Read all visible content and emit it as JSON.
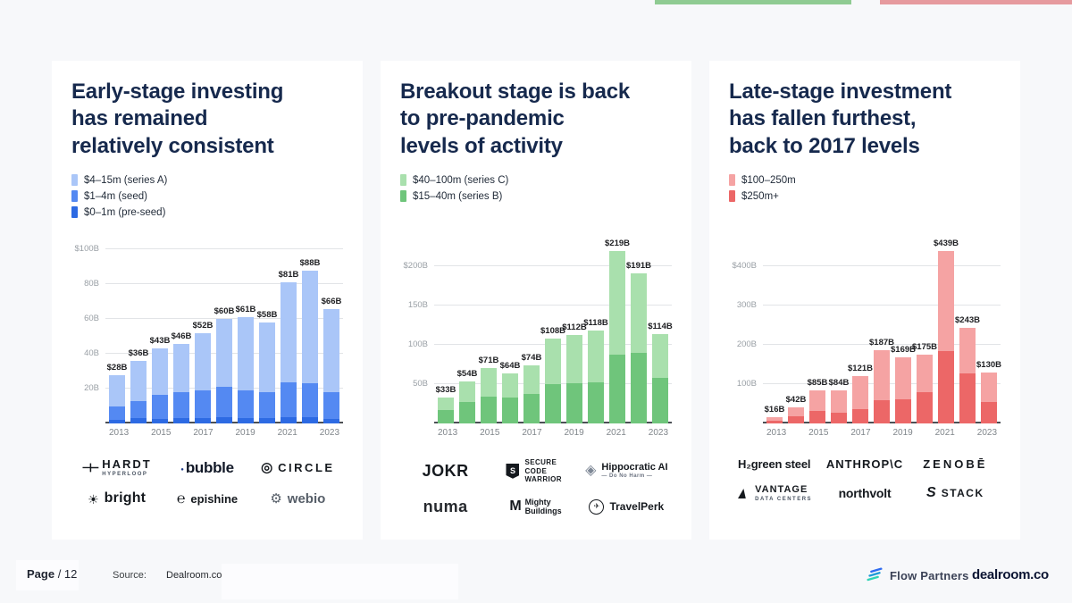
{
  "top_bars": [
    {
      "name": "green-section-bar",
      "color": "#8fcb92"
    },
    {
      "name": "red-section-bar",
      "color": "#e69a9e"
    }
  ],
  "panels": [
    {
      "title_lines": [
        "Early-stage investing",
        "has remained",
        "relatively consistent"
      ],
      "legend": [
        {
          "label": "$4–15m (series A)",
          "color": "#aac6f8"
        },
        {
          "label": "$1–4m (seed)",
          "color": "#5489f2"
        },
        {
          "label": "$0–1m (pre-seed)",
          "color": "#2d6ae3"
        }
      ],
      "logos": [
        {
          "name": "hardt",
          "icon": "hardt-icon",
          "text": "HARDT",
          "sub": "HYPERLOOP"
        },
        {
          "name": "bubble",
          "icon": "dot-icon",
          "text": "bubble"
        },
        {
          "name": "circle",
          "icon": "circle-icon",
          "text": "CIRCLE"
        },
        {
          "name": "bright",
          "icon": "sun-icon",
          "text": "bright"
        },
        {
          "name": "epishine",
          "icon": "epishine-icon",
          "text": "epishine"
        },
        {
          "name": "webio",
          "icon": "webio-icon",
          "text": "webio"
        }
      ]
    },
    {
      "title_lines": [
        "Breakout stage is back",
        "to pre-pandemic",
        "levels of activity"
      ],
      "legend": [
        {
          "label": "$40–100m (series C)",
          "color": "#a9e0ad"
        },
        {
          "label": "$15–40m (series B)",
          "color": "#6fc57b"
        }
      ],
      "logos": [
        {
          "name": "jokr",
          "text": "JOKR"
        },
        {
          "name": "secure-code-warrior",
          "icon": "shield-icon",
          "text": "SECURE CODE WARRIOR"
        },
        {
          "name": "hippocratic-ai",
          "icon": "bird-icon",
          "text": "Hippocratic AI",
          "sub": "— Do No Harm —"
        },
        {
          "name": "numa",
          "text": "numa"
        },
        {
          "name": "mighty-buildings",
          "icon": "m-icon",
          "text": "Mighty Buildings"
        },
        {
          "name": "travelperk",
          "icon": "plane-icon",
          "text": "TravelPerk"
        }
      ]
    },
    {
      "title_lines": [
        "Late-stage investment",
        "has fallen furthest,",
        "back to 2017 levels"
      ],
      "legend": [
        {
          "label": "$100–250m",
          "color": "#f5a3a3"
        },
        {
          "label": "$250m+",
          "color": "#ec6767"
        }
      ],
      "logos": [
        {
          "name": "h2-green-steel",
          "text": "H₂green steel"
        },
        {
          "name": "anthropic",
          "text": "ANTHROP\\C"
        },
        {
          "name": "zenobe",
          "text": "ZENOBĒ"
        },
        {
          "name": "vantage",
          "icon": "flame-icon",
          "text": "VANTAGE",
          "sub": "DATA CENTERS"
        },
        {
          "name": "northvolt",
          "text": "northvolt"
        },
        {
          "name": "stack",
          "icon": "s-icon",
          "text": "STACK"
        }
      ]
    }
  ],
  "chart_data": [
    {
      "type": "stacked-bar",
      "title": "Early-stage VC investment by year ($B)",
      "categories": [
        "2013",
        "2014",
        "2015",
        "2016",
        "2017",
        "2018",
        "2019",
        "2020",
        "2021",
        "2022",
        "2023"
      ],
      "x_tick_labels": [
        "2013",
        "",
        "2015",
        "",
        "2017",
        "",
        "2019",
        "",
        "2021",
        "",
        "2023"
      ],
      "series": [
        {
          "name": "$0–1m (pre-seed)",
          "color": "#2d6ae3",
          "values": [
            2.5,
            3.5,
            3,
            3.5,
            3.5,
            4,
            3.5,
            3.5,
            4,
            4,
            3
          ]
        },
        {
          "name": "$1–4m (seed)",
          "color": "#5489f2",
          "values": [
            7.5,
            9.5,
            13.5,
            14.5,
            15.5,
            17,
            15.5,
            14.5,
            20,
            19.5,
            15
          ]
        },
        {
          "name": "$4–15m (series A)",
          "color": "#aac6f8",
          "values": [
            18,
            23,
            26.5,
            28,
            33,
            39,
            42,
            40,
            57,
            64.5,
            48
          ]
        }
      ],
      "totals": [
        28,
        36,
        43,
        46,
        52,
        60,
        61,
        58,
        81,
        88,
        66
      ],
      "bar_labels": [
        "$28B",
        "$36B",
        "$43B",
        "$46B",
        "$52B",
        "$60B",
        "$61B",
        "$58B",
        "$81B",
        "$88B",
        "$66B"
      ],
      "ylim": [
        0,
        105
      ],
      "yticks": [
        {
          "value": 20,
          "label": "20B"
        },
        {
          "value": 40,
          "label": "40B"
        },
        {
          "value": 60,
          "label": "60B"
        },
        {
          "value": 80,
          "label": "80B"
        },
        {
          "value": 100,
          "label": "$100B"
        }
      ],
      "grid": true,
      "legend_position": "top-left"
    },
    {
      "type": "stacked-bar",
      "title": "Breakout-stage VC investment by year ($B)",
      "categories": [
        "2013",
        "2014",
        "2015",
        "2016",
        "2017",
        "2018",
        "2019",
        "2020",
        "2021",
        "2022",
        "2023"
      ],
      "x_tick_labels": [
        "2013",
        "",
        "2015",
        "",
        "2017",
        "",
        "2019",
        "",
        "2021",
        "",
        "2023"
      ],
      "series": [
        {
          "name": "$15–40m (series B)",
          "color": "#6fc57b",
          "values": [
            18,
            28,
            34,
            33,
            38,
            50,
            51,
            53,
            88,
            90,
            58
          ]
        },
        {
          "name": "$40–100m (series C)",
          "color": "#a9e0ad",
          "values": [
            15,
            26,
            37,
            31,
            36,
            58,
            61,
            65,
            131,
            101,
            56
          ]
        }
      ],
      "totals": [
        33,
        54,
        71,
        64,
        74,
        108,
        112,
        118,
        219,
        191,
        114
      ],
      "bar_labels": [
        "$33B",
        "$54B",
        "$71B",
        "$64B",
        "$74B",
        "$108B",
        "$112B",
        "$118B",
        "$219B",
        "$191B",
        "$114B"
      ],
      "ylim": [
        0,
        232
      ],
      "yticks": [
        {
          "value": 50,
          "label": "50B"
        },
        {
          "value": 100,
          "label": "100B"
        },
        {
          "value": 150,
          "label": "150B"
        },
        {
          "value": 200,
          "label": "$200B"
        }
      ],
      "grid": true,
      "legend_position": "top-left"
    },
    {
      "type": "stacked-bar",
      "title": "Late-stage VC investment by year ($B)",
      "categories": [
        "2013",
        "2014",
        "2015",
        "2016",
        "2017",
        "2018",
        "2019",
        "2020",
        "2021",
        "2022",
        "2023"
      ],
      "x_tick_labels": [
        "2013",
        "",
        "2015",
        "",
        "2017",
        "",
        "2019",
        "",
        "2021",
        "",
        "2023"
      ],
      "series": [
        {
          "name": "$250m+",
          "color": "#ec6767",
          "values": [
            8,
            18,
            32,
            28,
            38,
            60,
            63,
            80,
            185,
            127,
            55
          ]
        },
        {
          "name": "$100–250m",
          "color": "#f5a3a3",
          "values": [
            8,
            24,
            53,
            56,
            83,
            127,
            106,
            95,
            254,
            116,
            75
          ]
        }
      ],
      "totals": [
        16,
        42,
        85,
        84,
        121,
        187,
        169,
        175,
        439,
        243,
        130
      ],
      "bar_labels": [
        "$16B",
        "$42B",
        "$85B",
        "$84B",
        "$121B",
        "$187B",
        "$169B",
        "$175B",
        "$439B",
        "$243B",
        "$130B"
      ],
      "ylim": [
        0,
        465
      ],
      "yticks": [
        {
          "value": 100,
          "label": "100B"
        },
        {
          "value": 200,
          "label": "200B"
        },
        {
          "value": 300,
          "label": "300B"
        },
        {
          "value": 400,
          "label": "$400B"
        }
      ],
      "grid": true,
      "legend_position": "top-left"
    }
  ],
  "icons": {
    "hardt-icon": "⊣⊢",
    "dot-icon": "●",
    "circle-icon": "◎",
    "sun-icon": "☀",
    "epishine-icon": "℮",
    "webio-icon": "⚙",
    "shield-icon": "S",
    "bird-icon": "◈",
    "m-icon": "M",
    "plane-icon": "✈",
    "flame-icon": "▲",
    "s-icon": "S"
  },
  "footer": {
    "page_label": "Page",
    "page_number": "/ 12",
    "source_label": "Source:",
    "source_value": "Dealroom.co",
    "flow_partners_label": "Flow Partners",
    "dealroom_label": "dealroom.co"
  }
}
